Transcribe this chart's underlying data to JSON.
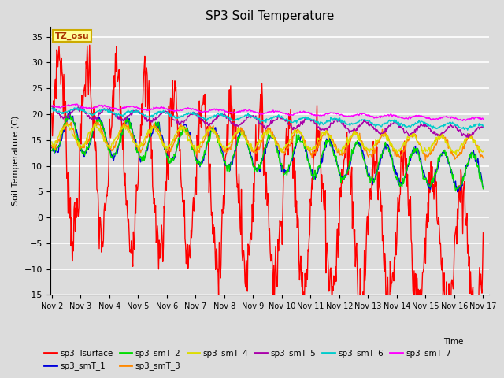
{
  "title": "SP3 Soil Temperature",
  "xlabel": "Time",
  "ylabel": "Soil Temperature (C)",
  "ylim": [
    -15,
    37
  ],
  "yticks": [
    -15,
    -10,
    -5,
    0,
    5,
    10,
    15,
    20,
    25,
    30,
    35
  ],
  "background_color": "#dcdcdc",
  "plot_bg_color": "#dcdcdc",
  "grid_color": "#ffffff",
  "tz_label": "TZ_osu",
  "tz_box_color": "#ffff99",
  "tz_border_color": "#ccaa00",
  "series_order": [
    "sp3_Tsurface",
    "sp3_smT_1",
    "sp3_smT_2",
    "sp3_smT_3",
    "sp3_smT_4",
    "sp3_smT_5",
    "sp3_smT_6",
    "sp3_smT_7"
  ],
  "series_colors": {
    "sp3_Tsurface": "#ff0000",
    "sp3_smT_1": "#0000dd",
    "sp3_smT_2": "#00dd00",
    "sp3_smT_3": "#ff8800",
    "sp3_smT_4": "#dddd00",
    "sp3_smT_5": "#aa00aa",
    "sp3_smT_6": "#00cccc",
    "sp3_smT_7": "#ff00ff"
  },
  "x_start": 1,
  "x_end": 16,
  "n_points": 720,
  "xtick_labels": [
    "Nov 2",
    "Nov 3",
    "Nov 4",
    "Nov 5",
    "Nov 6",
    "Nov 7",
    "Nov 8",
    "Nov 9",
    "Nov 10",
    "Nov 11",
    "Nov 12",
    "Nov 13",
    "Nov 14",
    "Nov 15",
    "Nov 16",
    "Nov 17"
  ],
  "xtick_positions": [
    1,
    2,
    3,
    4,
    5,
    6,
    7,
    8,
    9,
    10,
    11,
    12,
    13,
    14,
    15,
    16
  ],
  "figsize": [
    6.4,
    4.8
  ],
  "dpi": 100
}
